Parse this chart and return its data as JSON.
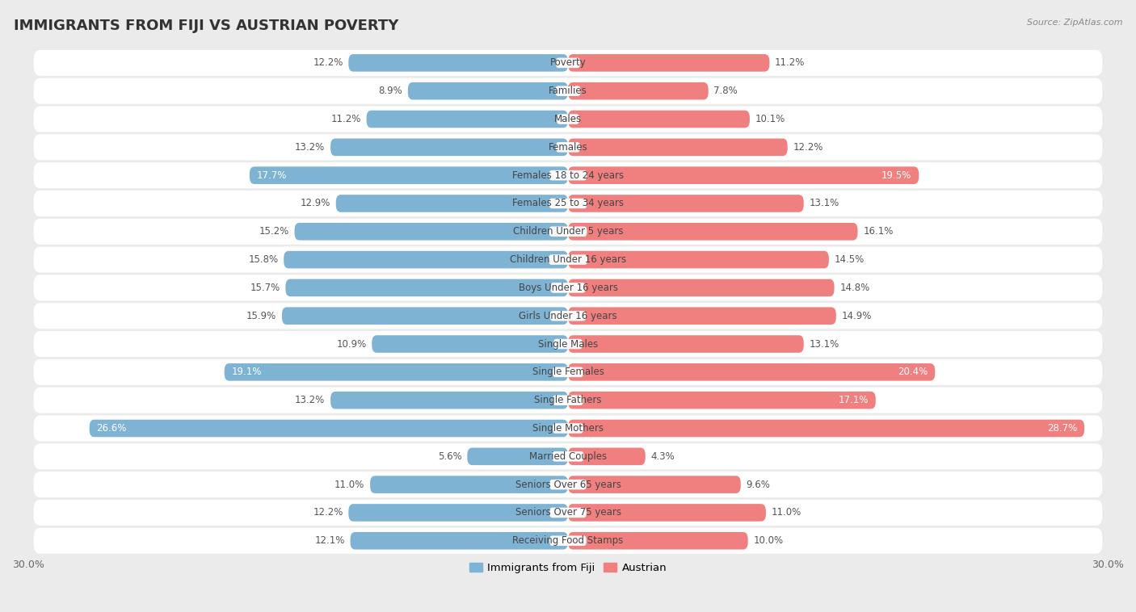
{
  "title": "IMMIGRANTS FROM FIJI VS AUSTRIAN POVERTY",
  "source": "Source: ZipAtlas.com",
  "categories": [
    "Poverty",
    "Families",
    "Males",
    "Females",
    "Females 18 to 24 years",
    "Females 25 to 34 years",
    "Children Under 5 years",
    "Children Under 16 years",
    "Boys Under 16 years",
    "Girls Under 16 years",
    "Single Males",
    "Single Females",
    "Single Fathers",
    "Single Mothers",
    "Married Couples",
    "Seniors Over 65 years",
    "Seniors Over 75 years",
    "Receiving Food Stamps"
  ],
  "fiji_values": [
    12.2,
    8.9,
    11.2,
    13.2,
    17.7,
    12.9,
    15.2,
    15.8,
    15.7,
    15.9,
    10.9,
    19.1,
    13.2,
    26.6,
    5.6,
    11.0,
    12.2,
    12.1
  ],
  "austrian_values": [
    11.2,
    7.8,
    10.1,
    12.2,
    19.5,
    13.1,
    16.1,
    14.5,
    14.8,
    14.9,
    13.1,
    20.4,
    17.1,
    28.7,
    4.3,
    9.6,
    11.0,
    10.0
  ],
  "fiji_color": "#7fb3d3",
  "austrian_color": "#f08080",
  "fiji_label": "Immigrants from Fiji",
  "austrian_label": "Austrian",
  "x_max": 30.0,
  "background_color": "#ebebeb",
  "row_bg_color": "#ffffff",
  "bar_height": 0.62,
  "title_fontsize": 13,
  "label_fontsize": 8.5,
  "value_fontsize": 8.5,
  "axis_tick_fontsize": 9,
  "fiji_inside_threshold": 17.0,
  "austrian_inside_threshold": 17.0
}
